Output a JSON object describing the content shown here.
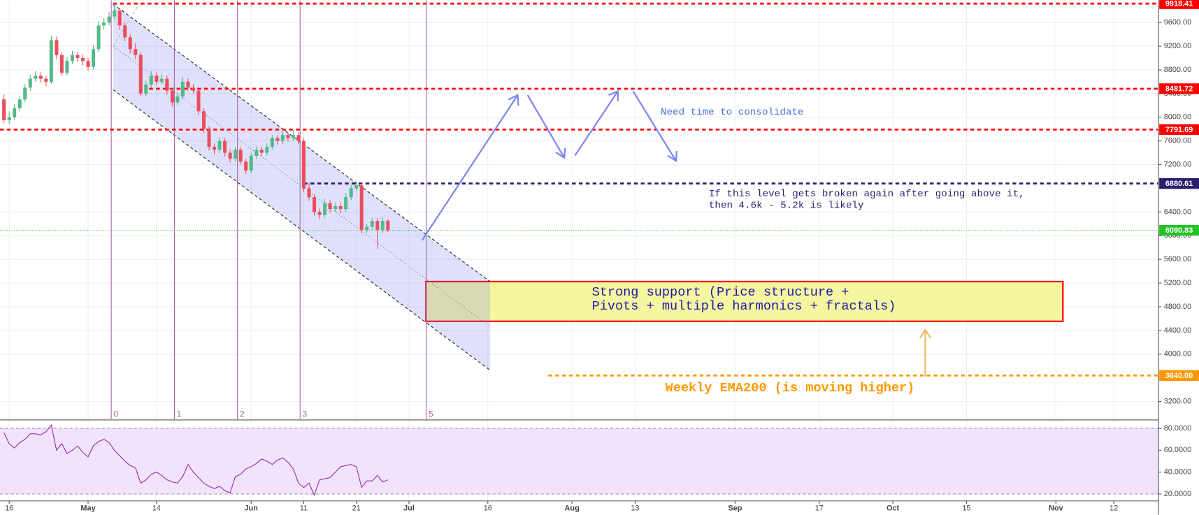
{
  "chart_data": {
    "type": "candlestick",
    "x": [
      -1,
      0,
      1,
      2,
      3,
      4,
      5,
      6,
      7,
      8,
      9,
      10,
      11,
      12,
      13,
      14,
      15,
      16,
      17,
      18,
      19,
      20,
      21,
      22,
      23,
      24,
      25,
      26,
      27,
      28,
      29,
      30,
      31,
      32,
      33,
      34,
      35,
      36,
      37,
      38,
      39,
      40,
      41,
      42,
      43,
      44,
      45,
      46,
      47,
      48,
      49,
      50,
      51,
      52,
      53,
      54,
      55,
      56,
      57,
      58,
      59,
      60,
      61,
      62,
      63,
      64,
      65,
      66,
      67,
      68,
      69,
      70,
      71,
      72
    ],
    "candles": [
      [
        8300,
        8380,
        7900,
        7950
      ],
      [
        7950,
        8100,
        7880,
        8000
      ],
      [
        8000,
        8220,
        7950,
        8150
      ],
      [
        8150,
        8360,
        8100,
        8300
      ],
      [
        8300,
        8560,
        8250,
        8500
      ],
      [
        8500,
        8720,
        8440,
        8650
      ],
      [
        8650,
        8780,
        8600,
        8700
      ],
      [
        8700,
        8760,
        8580,
        8650
      ],
      [
        8650,
        8700,
        8520,
        8600
      ],
      [
        8600,
        9380,
        8560,
        9300
      ],
      [
        9300,
        9360,
        8980,
        9050
      ],
      [
        9050,
        9100,
        8700,
        8750
      ],
      [
        8750,
        9020,
        8700,
        8950
      ],
      [
        8950,
        9120,
        8900,
        9050
      ],
      [
        9050,
        9100,
        8940,
        9000
      ],
      [
        9000,
        9060,
        8880,
        8950
      ],
      [
        8950,
        9000,
        8780,
        8850
      ],
      [
        8850,
        9220,
        8800,
        9150
      ],
      [
        9150,
        9620,
        9100,
        9550
      ],
      [
        9550,
        9680,
        9480,
        9600
      ],
      [
        9600,
        9780,
        9550,
        9700
      ],
      [
        9700,
        9918.41,
        9650,
        9800
      ],
      [
        9800,
        9850,
        9480,
        9550
      ],
      [
        9550,
        9600,
        9280,
        9350
      ],
      [
        9350,
        9400,
        9080,
        9150
      ],
      [
        9150,
        9250,
        8980,
        9050
      ],
      [
        9050,
        9100,
        8350,
        8400
      ],
      [
        8400,
        8620,
        8350,
        8550
      ],
      [
        8550,
        8780,
        8500,
        8700
      ],
      [
        8700,
        8760,
        8540,
        8600
      ],
      [
        8600,
        8720,
        8560,
        8650
      ],
      [
        8650,
        8700,
        8380,
        8450
      ],
      [
        8450,
        8500,
        8180,
        8250
      ],
      [
        8250,
        8420,
        8200,
        8350
      ],
      [
        8350,
        8680,
        8300,
        8600
      ],
      [
        8600,
        8650,
        8440,
        8500
      ],
      [
        8500,
        8560,
        8400,
        8450
      ],
      [
        8450,
        8500,
        8040,
        8100
      ],
      [
        8100,
        8150,
        7740,
        7800
      ],
      [
        7800,
        7850,
        7440,
        7500
      ],
      [
        7500,
        7560,
        7380,
        7450
      ],
      [
        7450,
        7660,
        7400,
        7600
      ],
      [
        7600,
        7650,
        7340,
        7400
      ],
      [
        7400,
        7460,
        7240,
        7300
      ],
      [
        7300,
        7500,
        7250,
        7450
      ],
      [
        7450,
        7500,
        7200,
        7250
      ],
      [
        7250,
        7300,
        7040,
        7100
      ],
      [
        7100,
        7400,
        7050,
        7350
      ],
      [
        7350,
        7500,
        7300,
        7450
      ],
      [
        7450,
        7500,
        7340,
        7400
      ],
      [
        7400,
        7560,
        7350,
        7500
      ],
      [
        7500,
        7700,
        7450,
        7650
      ],
      [
        7650,
        7700,
        7540,
        7600
      ],
      [
        7600,
        7760,
        7550,
        7700
      ],
      [
        7700,
        7750,
        7590,
        7650
      ],
      [
        7650,
        7780,
        7600,
        7700
      ],
      [
        7700,
        7750,
        7540,
        7600
      ],
      [
        7600,
        7650,
        6740,
        6800
      ],
      [
        6800,
        6900,
        6590,
        6650
      ],
      [
        6650,
        6700,
        6340,
        6400
      ],
      [
        6400,
        6460,
        6280,
        6350
      ],
      [
        6350,
        6620,
        6300,
        6550
      ],
      [
        6550,
        6600,
        6390,
        6450
      ],
      [
        6450,
        6560,
        6400,
        6500
      ],
      [
        6500,
        6560,
        6380,
        6450
      ],
      [
        6450,
        6720,
        6400,
        6650
      ],
      [
        6650,
        6860,
        6600,
        6800
      ],
      [
        6800,
        6900,
        6750,
        6850
      ],
      [
        6850,
        6880,
        6040,
        6100
      ],
      [
        6100,
        6200,
        6050,
        6150
      ],
      [
        6150,
        6300,
        6100,
        6250
      ],
      [
        6250,
        6300,
        5780,
        6100
      ],
      [
        6100,
        6320,
        6050,
        6250
      ],
      [
        6250,
        6280,
        6060,
        6090.83
      ]
    ],
    "color_up": "#53b987",
    "color_down": "#eb4d5c",
    "xlim": [
      -1.75,
      218.5
    ],
    "ylim": [
      2903,
      9974
    ],
    "grid": true,
    "xticks": [
      {
        "value": 0,
        "label": "16"
      },
      {
        "value": 15,
        "label": "May"
      },
      {
        "value": 28,
        "label": "14"
      },
      {
        "value": 46,
        "label": "Jun"
      },
      {
        "value": 56,
        "label": "11"
      },
      {
        "value": 66,
        "label": "21"
      },
      {
        "value": 76,
        "label": "Jul"
      },
      {
        "value": 91,
        "label": "16"
      },
      {
        "value": 107,
        "label": "Aug"
      },
      {
        "value": 119,
        "label": "13"
      },
      {
        "value": 138,
        "label": "Sep"
      },
      {
        "value": 154,
        "label": "17"
      },
      {
        "value": 168,
        "label": "Oct"
      },
      {
        "value": 182,
        "label": "15"
      },
      {
        "value": 199,
        "label": "Nov"
      },
      {
        "value": 210,
        "label": "12"
      }
    ],
    "yticks": [
      {
        "value": 3200,
        "label": "3200.00"
      },
      {
        "value": 4000,
        "label": "4000.00"
      },
      {
        "value": 4400,
        "label": "4400.00"
      },
      {
        "value": 4800,
        "label": "4800.00"
      },
      {
        "value": 5200,
        "label": "5200.00"
      },
      {
        "value": 5600,
        "label": "5600.00"
      },
      {
        "value": 6000,
        "label": "6000.00"
      },
      {
        "value": 6400,
        "label": "6400.00"
      },
      {
        "value": 7200,
        "label": "7200.00"
      },
      {
        "value": 7600,
        "label": "7600.00"
      },
      {
        "value": 8000,
        "label": "8000.00"
      },
      {
        "value": 8400,
        "label": "8400.00"
      },
      {
        "value": 8800,
        "label": "8800.00"
      },
      {
        "value": 9200,
        "label": "9200.00"
      },
      {
        "value": 9600,
        "label": "9600.00"
      }
    ],
    "levels": [
      {
        "value": 9918.41,
        "label": "9918.41",
        "color": "#ff0000"
      },
      {
        "value": 8481.72,
        "label": "8481.72",
        "color": "#ff0000"
      },
      {
        "value": 7791.69,
        "label": "7791.69",
        "color": "#ff0000"
      },
      {
        "value": 6880.61,
        "label": "6880.61",
        "color": "#2a1f6e"
      },
      {
        "value": 6090.83,
        "label": "6090.83",
        "color": "#22c422"
      },
      {
        "value": 3640,
        "label": "3640.00",
        "color": "#ff9800"
      }
    ],
    "time_zones": [
      {
        "x": 19.4,
        "label": "0"
      },
      {
        "x": 31.4,
        "label": "1"
      },
      {
        "x": 43.4,
        "label": "2"
      },
      {
        "x": 55.3,
        "label": "3"
      },
      {
        "x": 79.3,
        "label": "5"
      }
    ],
    "annotations": {
      "consolidate": "Need time to consolidate",
      "breakdown": [
        "If this level gets broken again after going above it,",
        "then 4.6k - 5.2k is likely"
      ],
      "support": [
        "Strong support (Price structure +",
        "Pivots + multiple harmonics + fractals)"
      ],
      "ema": "Weekly EMA200 (is moving higher)"
    },
    "rsi": {
      "values": [
        76,
        66,
        62,
        67,
        70,
        75,
        75,
        74,
        77,
        83,
        60,
        66,
        57,
        60,
        64,
        58,
        54,
        64,
        68,
        70,
        67,
        60,
        55,
        50,
        46,
        44,
        30,
        33,
        38,
        40,
        37,
        33,
        31,
        30,
        36,
        47,
        40,
        35,
        30,
        27,
        25,
        27,
        23,
        21,
        36,
        38,
        43,
        45,
        48,
        52,
        50,
        47,
        51,
        53,
        49,
        43,
        30,
        26,
        30,
        19,
        33,
        34,
        35,
        40,
        45,
        46,
        47,
        45,
        26,
        32,
        32,
        37,
        31,
        33
      ],
      "color": "#9c27b0",
      "ylim": [
        13.7,
        87
      ],
      "band": [
        20,
        80
      ],
      "yticks": [
        {
          "value": 20,
          "label": "20.0000"
        },
        {
          "value": 40,
          "label": "40.0000"
        },
        {
          "value": 60,
          "label": "60.0000"
        },
        {
          "value": 80,
          "label": "80.0000"
        }
      ]
    }
  }
}
